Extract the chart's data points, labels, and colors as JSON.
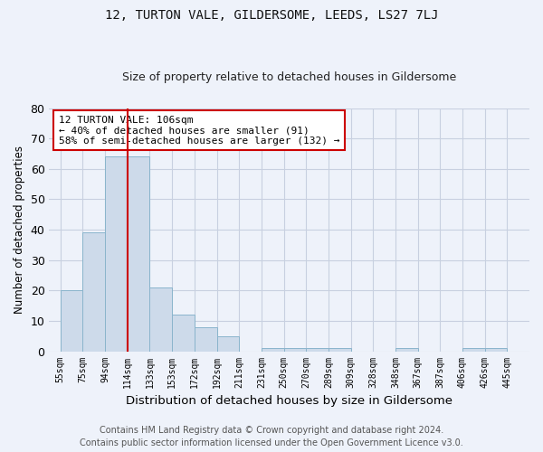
{
  "title1": "12, TURTON VALE, GILDERSOME, LEEDS, LS27 7LJ",
  "title2": "Size of property relative to detached houses in Gildersome",
  "xlabel": "Distribution of detached houses by size in Gildersome",
  "ylabel": "Number of detached properties",
  "footnote1": "Contains HM Land Registry data © Crown copyright and database right 2024.",
  "footnote2": "Contains public sector information licensed under the Open Government Licence v3.0.",
  "bin_labels": [
    "55sqm",
    "75sqm",
    "94sqm",
    "114sqm",
    "133sqm",
    "153sqm",
    "172sqm",
    "192sqm",
    "211sqm",
    "231sqm",
    "250sqm",
    "270sqm",
    "289sqm",
    "309sqm",
    "328sqm",
    "348sqm",
    "367sqm",
    "387sqm",
    "406sqm",
    "426sqm",
    "445sqm"
  ],
  "values": [
    20,
    39,
    64,
    64,
    21,
    12,
    8,
    5,
    0,
    1,
    1,
    1,
    1,
    0,
    0,
    1,
    0,
    0,
    1,
    1,
    0
  ],
  "bar_color": "#cddaea",
  "bar_edge_color": "#8ab4cc",
  "vline_x": 3,
  "vline_color": "#cc0000",
  "annotation_line1": "12 TURTON VALE: 106sqm",
  "annotation_line2": "← 40% of detached houses are smaller (91)",
  "annotation_line3": "58% of semi-detached houses are larger (132) →",
  "annotation_box_color": "#ffffff",
  "annotation_box_edge": "#cc0000",
  "ylim": [
    0,
    80
  ],
  "yticks": [
    0,
    10,
    20,
    30,
    40,
    50,
    60,
    70,
    80
  ],
  "background_color": "#eef2fa",
  "grid_color": "#c8d0e0",
  "title_fontsize": 10,
  "subtitle_fontsize": 9,
  "footnote_fontsize": 7
}
